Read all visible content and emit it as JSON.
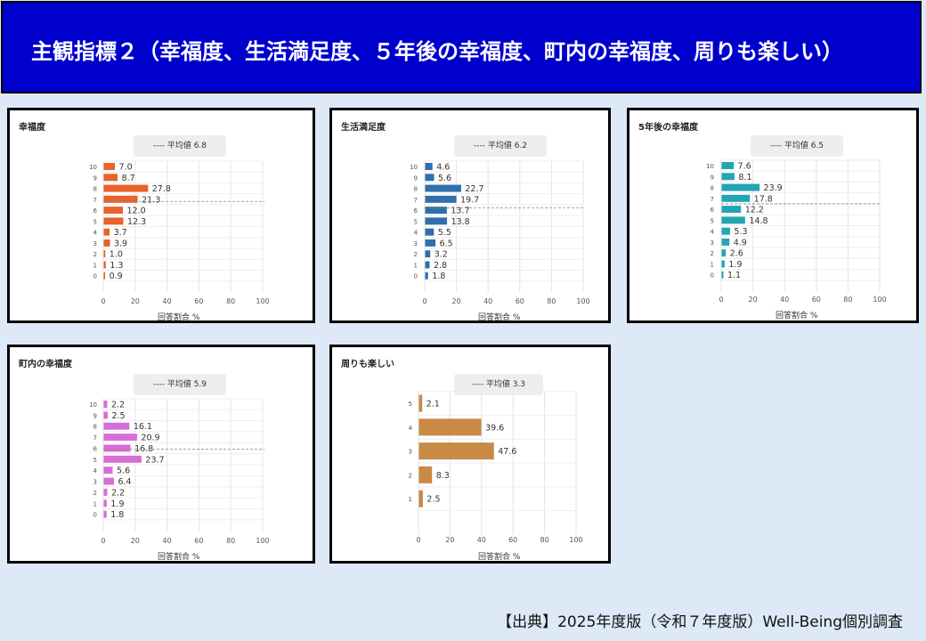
{
  "header": {
    "title": "主観指標２（幸福度、生活満足度、５年後の幸福度、町内の幸福度、周りも楽しい）"
  },
  "source": "【出典】2025年度版（令和７年度版）Well-Being個別調査",
  "chart_data": [
    {
      "type": "bar",
      "orientation": "horizontal",
      "title": "幸福度",
      "average_label": "---- 平均値 6.8",
      "average": 6.8,
      "categories": [
        "10",
        "9",
        "8",
        "7",
        "6",
        "5",
        "4",
        "3",
        "2",
        "1",
        "0"
      ],
      "values": [
        7.0,
        8.7,
        27.8,
        21.3,
        12.0,
        12.3,
        3.7,
        3.9,
        1.0,
        1.3,
        0.9
      ],
      "value_labels": [
        "7.0",
        "8.7",
        "27.8",
        "21.3",
        "12.0",
        "12.3",
        "3.7",
        "3.9",
        "1.0",
        "1.3",
        "0.9"
      ],
      "xlabel": "回答割合 %",
      "xlim": [
        0,
        100
      ],
      "xticks": [
        "0",
        "20",
        "40",
        "60",
        "80",
        "100"
      ],
      "color": "#e8622a"
    },
    {
      "type": "bar",
      "orientation": "horizontal",
      "title": "生活満足度",
      "average_label": "---- 平均値 6.2",
      "average": 6.2,
      "categories": [
        "10",
        "9",
        "8",
        "7",
        "6",
        "5",
        "4",
        "3",
        "2",
        "1",
        "0"
      ],
      "values": [
        4.6,
        5.6,
        22.7,
        19.7,
        13.7,
        13.8,
        5.5,
        6.5,
        3.2,
        2.8,
        1.8
      ],
      "value_labels": [
        "4.6",
        "5.6",
        "22.7",
        "19.7",
        "13.7",
        "13.8",
        "5.5",
        "6.5",
        "3.2",
        "2.8",
        "1.8"
      ],
      "xlabel": "回答割合 %",
      "xlim": [
        0,
        100
      ],
      "xticks": [
        "0",
        "20",
        "40",
        "60",
        "80",
        "100"
      ],
      "color": "#2f6fab"
    },
    {
      "type": "bar",
      "orientation": "horizontal",
      "title": "5年後の幸福度",
      "average_label": "---- 平均値 6.5",
      "average": 6.5,
      "categories": [
        "10",
        "9",
        "8",
        "7",
        "6",
        "5",
        "4",
        "3",
        "2",
        "1",
        "0"
      ],
      "values": [
        7.6,
        8.1,
        23.9,
        17.8,
        12.2,
        14.8,
        5.3,
        4.9,
        2.6,
        1.9,
        1.1
      ],
      "value_labels": [
        "7.6",
        "8.1",
        "23.9",
        "17.8",
        "12.2",
        "14.8",
        "5.3",
        "4.9",
        "2.6",
        "1.9",
        "1.1"
      ],
      "xlabel": "回答割合 %",
      "xlim": [
        0,
        100
      ],
      "xticks": [
        "0",
        "20",
        "40",
        "60",
        "80",
        "100"
      ],
      "color": "#22a6b3"
    },
    {
      "type": "bar",
      "orientation": "horizontal",
      "title": "町内の幸福度",
      "average_label": "---- 平均値 5.9",
      "average": 5.9,
      "categories": [
        "10",
        "9",
        "8",
        "7",
        "6",
        "5",
        "4",
        "3",
        "2",
        "1",
        "0"
      ],
      "values": [
        2.2,
        2.5,
        16.1,
        20.9,
        16.8,
        23.7,
        5.6,
        6.4,
        2.2,
        1.9,
        1.8
      ],
      "value_labels": [
        "2.2",
        "2.5",
        "16.1",
        "20.9",
        "16.8",
        "23.7",
        "5.6",
        "6.4",
        "2.2",
        "1.9",
        "1.8"
      ],
      "xlabel": "回答割合 %",
      "xlim": [
        0,
        100
      ],
      "xticks": [
        "0",
        "20",
        "40",
        "60",
        "80",
        "100"
      ],
      "color": "#d56fd6"
    },
    {
      "type": "bar",
      "orientation": "horizontal",
      "title": "周りも楽しい",
      "average_label": "---- 平均値 3.3",
      "average": 3.3,
      "categories": [
        "5",
        "4",
        "3",
        "2",
        "1"
      ],
      "values": [
        2.1,
        39.6,
        47.6,
        8.3,
        2.5
      ],
      "value_labels": [
        "2.1",
        "39.6",
        "47.6",
        "8.3",
        "2.5"
      ],
      "xlabel": "回答割合 %",
      "xlim": [
        0,
        100
      ],
      "xticks": [
        "0",
        "20",
        "40",
        "60",
        "80",
        "100"
      ],
      "color": "#c88a45"
    }
  ]
}
